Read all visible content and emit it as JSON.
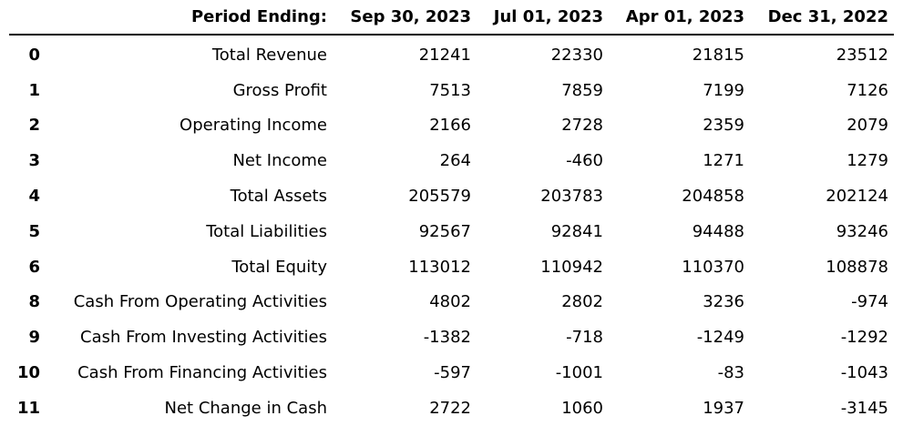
{
  "header": {
    "index_label": "",
    "label_header": "Period Ending:",
    "periods": [
      "Sep 30, 2023",
      "Jul 01, 2023",
      "Apr 01, 2023",
      "Dec 31, 2022"
    ]
  },
  "rows": [
    {
      "index": "0",
      "label": "Total Revenue",
      "values": [
        "21241",
        "22330",
        "21815",
        "23512"
      ]
    },
    {
      "index": "1",
      "label": "Gross Profit",
      "values": [
        "7513",
        "7859",
        "7199",
        "7126"
      ]
    },
    {
      "index": "2",
      "label": "Operating Income",
      "values": [
        "2166",
        "2728",
        "2359",
        "2079"
      ]
    },
    {
      "index": "3",
      "label": "Net Income",
      "values": [
        "264",
        "-460",
        "1271",
        "1279"
      ]
    },
    {
      "index": "4",
      "label": "Total Assets",
      "values": [
        "205579",
        "203783",
        "204858",
        "202124"
      ]
    },
    {
      "index": "5",
      "label": "Total Liabilities",
      "values": [
        "92567",
        "92841",
        "94488",
        "93246"
      ]
    },
    {
      "index": "6",
      "label": "Total Equity",
      "values": [
        "113012",
        "110942",
        "110370",
        "108878"
      ]
    },
    {
      "index": "8",
      "label": "Cash From Operating Activities",
      "values": [
        "4802",
        "2802",
        "3236",
        "-974"
      ]
    },
    {
      "index": "9",
      "label": "Cash From Investing Activities",
      "values": [
        "-1382",
        "-718",
        "-1249",
        "-1292"
      ]
    },
    {
      "index": "10",
      "label": "Cash From Financing Activities",
      "values": [
        "-597",
        "-1001",
        "-83",
        "-1043"
      ]
    },
    {
      "index": "11",
      "label": "Net Change in Cash",
      "values": [
        "2722",
        "1060",
        "1937",
        "-3145"
      ]
    }
  ]
}
